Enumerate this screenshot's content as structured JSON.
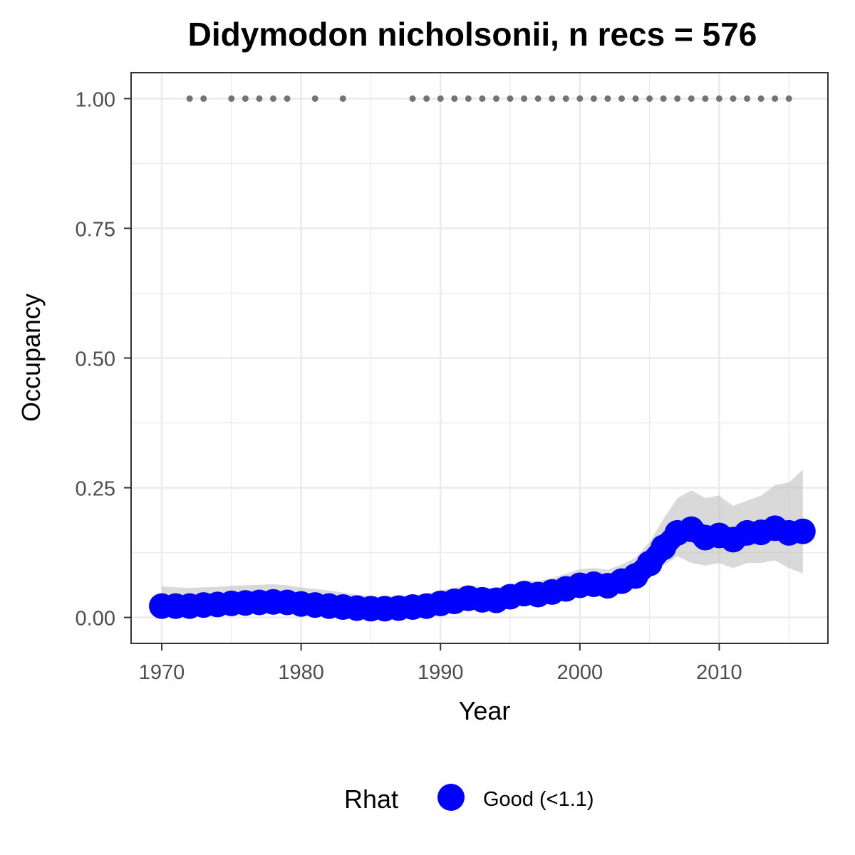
{
  "chart_data": {
    "type": "line",
    "title": "Didymodon nicholsonii, n recs = 576",
    "xlabel": "Year",
    "ylabel": "Occupancy",
    "xlim": [
      1967.8,
      2017.8
    ],
    "ylim": [
      -0.05,
      1.05
    ],
    "x_ticks": [
      1970,
      1980,
      1990,
      2000,
      2010
    ],
    "x_tick_labels": [
      "1970",
      "1980",
      "1990",
      "2000",
      "2010"
    ],
    "y_ticks": [
      0,
      0.25,
      0.5,
      0.75,
      1.0
    ],
    "y_tick_labels": [
      "0.00",
      "0.25",
      "0.50",
      "0.75",
      "1.00"
    ],
    "grid": true,
    "series": [
      {
        "name": "Occupancy (Good (<1.1))",
        "x": [
          1970,
          1971,
          1972,
          1973,
          1974,
          1975,
          1976,
          1977,
          1978,
          1979,
          1980,
          1981,
          1982,
          1983,
          1984,
          1985,
          1986,
          1987,
          1988,
          1989,
          1990,
          1991,
          1992,
          1993,
          1994,
          1995,
          1996,
          1997,
          1998,
          1999,
          2000,
          2001,
          2002,
          2003,
          2004,
          2005,
          2006,
          2007,
          2008,
          2009,
          2010,
          2011,
          2012,
          2013,
          2014,
          2015,
          2016
        ],
        "values": [
          0.022,
          0.022,
          0.022,
          0.024,
          0.025,
          0.027,
          0.028,
          0.029,
          0.03,
          0.029,
          0.026,
          0.024,
          0.022,
          0.02,
          0.018,
          0.017,
          0.017,
          0.018,
          0.02,
          0.022,
          0.027,
          0.031,
          0.037,
          0.034,
          0.033,
          0.04,
          0.046,
          0.044,
          0.049,
          0.055,
          0.062,
          0.064,
          0.061,
          0.07,
          0.08,
          0.104,
          0.135,
          0.163,
          0.17,
          0.154,
          0.158,
          0.15,
          0.163,
          0.164,
          0.172,
          0.163,
          0.166
        ],
        "lower": [
          0.01,
          0.01,
          0.01,
          0.011,
          0.012,
          0.013,
          0.014,
          0.015,
          0.015,
          0.015,
          0.013,
          0.012,
          0.01,
          0.009,
          0.008,
          0.007,
          0.007,
          0.008,
          0.009,
          0.011,
          0.014,
          0.017,
          0.022,
          0.02,
          0.019,
          0.025,
          0.03,
          0.028,
          0.032,
          0.037,
          0.043,
          0.045,
          0.042,
          0.05,
          0.058,
          0.077,
          0.1,
          0.118,
          0.105,
          0.1,
          0.105,
          0.095,
          0.105,
          0.105,
          0.11,
          0.095,
          0.085
        ],
        "upper": [
          0.06,
          0.058,
          0.057,
          0.058,
          0.059,
          0.061,
          0.062,
          0.063,
          0.064,
          0.062,
          0.058,
          0.055,
          0.052,
          0.048,
          0.044,
          0.041,
          0.04,
          0.041,
          0.043,
          0.046,
          0.052,
          0.057,
          0.062,
          0.058,
          0.057,
          0.064,
          0.071,
          0.07,
          0.076,
          0.084,
          0.093,
          0.095,
          0.092,
          0.102,
          0.115,
          0.145,
          0.19,
          0.23,
          0.245,
          0.23,
          0.235,
          0.215,
          0.225,
          0.235,
          0.255,
          0.26,
          0.285
        ]
      },
      {
        "name": "Records",
        "x": [
          1972,
          1973,
          1975,
          1976,
          1977,
          1978,
          1979,
          1981,
          1983,
          1988,
          1989,
          1990,
          1991,
          1992,
          1993,
          1994,
          1995,
          1996,
          1997,
          1998,
          1999,
          2000,
          2001,
          2002,
          2003,
          2004,
          2005,
          2006,
          2007,
          2008,
          2009,
          2010,
          2011,
          2012,
          2013,
          2014,
          2015
        ],
        "values": [
          1,
          1,
          1,
          1,
          1,
          1,
          1,
          1,
          1,
          1,
          1,
          1,
          1,
          1,
          1,
          1,
          1,
          1,
          1,
          1,
          1,
          1,
          1,
          1,
          1,
          1,
          1,
          1,
          1,
          1,
          1,
          1,
          1,
          1,
          1,
          1,
          1
        ]
      }
    ],
    "legend": {
      "title": "Rhat",
      "entries": [
        "Good (<1.1)"
      ],
      "position": "bottom"
    },
    "colors": {
      "line": "#0000ff",
      "ribbon": "#bfbfbf",
      "records": "#737373",
      "grid": "#ebebeb",
      "panel_border": "#333333"
    }
  }
}
